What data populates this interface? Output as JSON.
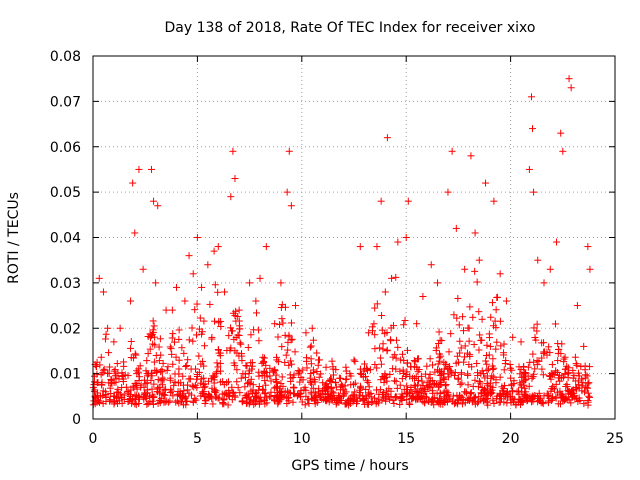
{
  "chart_data": {
    "type": "scatter",
    "title": "Day 138 of 2018, Rate Of TEC Index for receiver xixo",
    "xlabel": "GPS time / hours",
    "ylabel": "ROTI / TECUs",
    "xlim": [
      0,
      25
    ],
    "ylim": [
      0,
      0.08
    ],
    "x_ticks": [
      "0",
      "5",
      "10",
      "15",
      "20",
      "25"
    ],
    "y_ticks": [
      "0",
      "0.01",
      "0.02",
      "0.03",
      "0.04",
      "0.05",
      "0.06",
      "0.07",
      "0.08"
    ],
    "grid": true,
    "marker": "+",
    "color": "#ff0000",
    "series": [
      {
        "points": [
          [
            0.1,
            0.012
          ],
          [
            0.3,
            0.031
          ],
          [
            0.5,
            0.028
          ],
          [
            0.7,
            0.02
          ],
          [
            1.0,
            0.017
          ],
          [
            1.3,
            0.02
          ],
          [
            1.8,
            0.026
          ],
          [
            1.9,
            0.052
          ],
          [
            2.0,
            0.041
          ],
          [
            2.2,
            0.055
          ],
          [
            2.4,
            0.033
          ],
          [
            2.8,
            0.055
          ],
          [
            2.9,
            0.048
          ],
          [
            3.0,
            0.03
          ],
          [
            3.1,
            0.047
          ],
          [
            3.5,
            0.024
          ],
          [
            3.8,
            0.024
          ],
          [
            4.0,
            0.029
          ],
          [
            4.4,
            0.026
          ],
          [
            4.6,
            0.036
          ],
          [
            4.8,
            0.032
          ],
          [
            5.0,
            0.04
          ],
          [
            5.2,
            0.029
          ],
          [
            5.5,
            0.034
          ],
          [
            5.8,
            0.037
          ],
          [
            6.0,
            0.038
          ],
          [
            6.3,
            0.028
          ],
          [
            6.6,
            0.049
          ],
          [
            6.7,
            0.059
          ],
          [
            6.8,
            0.053
          ],
          [
            7.0,
            0.024
          ],
          [
            7.5,
            0.03
          ],
          [
            7.8,
            0.026
          ],
          [
            8.0,
            0.031
          ],
          [
            8.3,
            0.038
          ],
          [
            8.7,
            0.021
          ],
          [
            9.0,
            0.03
          ],
          [
            9.3,
            0.05
          ],
          [
            9.4,
            0.059
          ],
          [
            9.5,
            0.047
          ],
          [
            9.7,
            0.025
          ],
          [
            10.2,
            0.019
          ],
          [
            10.5,
            0.02
          ],
          [
            10.8,
            0.013
          ],
          [
            11.5,
            0.011
          ],
          [
            12.5,
            0.013
          ],
          [
            12.8,
            0.038
          ],
          [
            13.2,
            0.019
          ],
          [
            13.6,
            0.038
          ],
          [
            13.8,
            0.048
          ],
          [
            14.0,
            0.028
          ],
          [
            14.1,
            0.062
          ],
          [
            14.3,
            0.031
          ],
          [
            14.6,
            0.039
          ],
          [
            15.0,
            0.04
          ],
          [
            15.1,
            0.048
          ],
          [
            15.5,
            0.021
          ],
          [
            15.8,
            0.027
          ],
          [
            16.2,
            0.034
          ],
          [
            16.5,
            0.03
          ],
          [
            17.0,
            0.05
          ],
          [
            17.2,
            0.059
          ],
          [
            17.4,
            0.042
          ],
          [
            17.8,
            0.033
          ],
          [
            18.1,
            0.058
          ],
          [
            18.3,
            0.041
          ],
          [
            18.5,
            0.035
          ],
          [
            18.8,
            0.052
          ],
          [
            19.2,
            0.048
          ],
          [
            19.5,
            0.032
          ],
          [
            19.8,
            0.026
          ],
          [
            20.1,
            0.018
          ],
          [
            20.5,
            0.017
          ],
          [
            20.9,
            0.055
          ],
          [
            21.0,
            0.071
          ],
          [
            21.05,
            0.064
          ],
          [
            21.1,
            0.05
          ],
          [
            21.3,
            0.035
          ],
          [
            21.6,
            0.03
          ],
          [
            21.9,
            0.033
          ],
          [
            22.2,
            0.039
          ],
          [
            22.4,
            0.063
          ],
          [
            22.5,
            0.059
          ],
          [
            22.8,
            0.075
          ],
          [
            22.9,
            0.073
          ],
          [
            23.2,
            0.025
          ],
          [
            23.5,
            0.016
          ],
          [
            23.7,
            0.038
          ],
          [
            23.8,
            0.033
          ],
          [
            0.2,
            0.008
          ],
          [
            0.6,
            0.006
          ],
          [
            1.1,
            0.009
          ],
          [
            1.6,
            0.007
          ],
          [
            2.1,
            0.01
          ],
          [
            2.6,
            0.008
          ],
          [
            3.2,
            0.007
          ],
          [
            3.7,
            0.009
          ],
          [
            4.2,
            0.008
          ],
          [
            4.7,
            0.011
          ],
          [
            5.3,
            0.009
          ],
          [
            5.9,
            0.01
          ],
          [
            6.4,
            0.008
          ],
          [
            7.1,
            0.009
          ],
          [
            7.6,
            0.011
          ],
          [
            8.2,
            0.01
          ],
          [
            8.8,
            0.008
          ],
          [
            9.6,
            0.007
          ],
          [
            10.4,
            0.009
          ],
          [
            11.0,
            0.008
          ],
          [
            11.8,
            0.009
          ],
          [
            12.3,
            0.01
          ],
          [
            13.0,
            0.011
          ],
          [
            13.5,
            0.012
          ],
          [
            14.5,
            0.011
          ],
          [
            15.3,
            0.009
          ],
          [
            16.0,
            0.008
          ],
          [
            16.8,
            0.01
          ],
          [
            17.5,
            0.009
          ],
          [
            18.0,
            0.012
          ],
          [
            18.7,
            0.01
          ],
          [
            19.3,
            0.008
          ],
          [
            20.0,
            0.009
          ],
          [
            20.7,
            0.01
          ],
          [
            21.5,
            0.011
          ],
          [
            22.0,
            0.012
          ],
          [
            22.6,
            0.01
          ],
          [
            23.0,
            0.009
          ],
          [
            23.6,
            0.007
          ]
        ]
      }
    ]
  }
}
